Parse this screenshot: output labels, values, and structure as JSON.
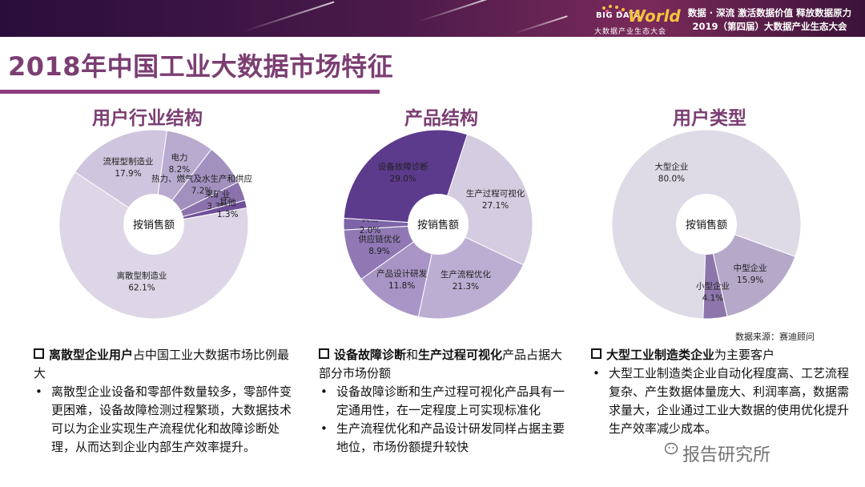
{
  "header": {
    "logo_big": "BIG DATA",
    "logo_world": "World",
    "logo_sub": "大数据产业生态大会",
    "slogan_line1": "数据 · 深流  激活数据价值  释放数据原力",
    "slogan_line2": "2019（第四届）大数据产业生态大会"
  },
  "page_title": "2018年中国工业大数据市场特征",
  "sections": [
    {
      "title": "用户行业结构"
    },
    {
      "title": "产品结构"
    },
    {
      "title": "用户类型"
    }
  ],
  "chart_data": [
    {
      "type": "pie",
      "title": "用户行业结构",
      "center_label": "按销售额",
      "colors": [
        "#dcd6e6",
        "#cfc5de",
        "#b9abcf",
        "#a290bf",
        "#8b72ad",
        "#6f4f98"
      ],
      "slices": [
        {
          "label": "离散型制造业",
          "value": 62.1,
          "value_text": "62.1%"
        },
        {
          "label": "流程型制造业",
          "value": 17.9,
          "value_text": "17.9%"
        },
        {
          "label": "电力",
          "value": 8.2,
          "value_text": "8.2%"
        },
        {
          "label": "热力、燃气及水生产和供应",
          "value": 7.2,
          "value_text": "7.2%"
        },
        {
          "label": "采矿业",
          "value": 3.3,
          "value_text": "3.3%"
        },
        {
          "label": "其他",
          "value": 1.3,
          "value_text": "1.3%"
        }
      ]
    },
    {
      "type": "pie",
      "title": "产品结构",
      "center_label": "按销售额",
      "colors": [
        "#d4cce0",
        "#bcaed3",
        "#a894c5",
        "#8f78b4",
        "#7d64a8",
        "#5c3a8c"
      ],
      "slices": [
        {
          "label": "生产过程可视化",
          "value": 27.1,
          "value_text": "27.1%"
        },
        {
          "label": "生产流程优化",
          "value": 21.3,
          "value_text": "21.3%"
        },
        {
          "label": "产品设计研发",
          "value": 11.8,
          "value_text": "11.8%"
        },
        {
          "label": "供应链优化",
          "value": 8.9,
          "value_text": "8.9%"
        },
        {
          "label": "其他",
          "value": 2.0,
          "value_text": "2.0%"
        },
        {
          "label": "设备故障诊断",
          "value": 29.0,
          "value_text": "29.0%"
        }
      ]
    },
    {
      "type": "pie",
      "title": "用户类型",
      "center_label": "按销售额",
      "colors": [
        "#dedae6",
        "#b5a8c9",
        "#8c76ab"
      ],
      "slices": [
        {
          "label": "大型企业",
          "value": 80.0,
          "value_text": "80.0%"
        },
        {
          "label": "中型企业",
          "value": 15.9,
          "value_text": "15.9%"
        },
        {
          "label": "小型企业",
          "value": 4.1,
          "value_text": "4.1%"
        }
      ]
    }
  ],
  "source": "数据来源：赛迪顾问",
  "panels": [
    {
      "head_bold": "离散型企业用户",
      "head_rest": "占中国工业大数据市场比例最大",
      "bullets": [
        "离散型企业设备和零部件数量较多，零部件变更困难，设备故障检测过程繁琐，大数据技术可以为企业实现生产流程优化和故障诊断处理，从而达到企业内部生产效率提升。"
      ]
    },
    {
      "head_bold": "设备故障诊断",
      "head_mid": "和",
      "head_bold2": "生产过程可视化",
      "head_rest": "产品占据大部分市场份额",
      "bullets": [
        "设备故障诊断和生产过程可视化产品具有一定通用性，在一定程度上可实现标准化",
        "生产流程优化和产品设计研发同样占据主要地位，市场份额提升较快"
      ]
    },
    {
      "head_bold": "大型工业制造类企业",
      "head_rest": "为主要客户",
      "bullets": [
        "大型工业制造类企业自动化程度高、工艺流程复杂、产生数据体量庞大、利润率高，数据需求量大，企业通过工业大数据的使用优化提升生产效率减少成本。"
      ]
    }
  ],
  "watermark": "报告研究所"
}
